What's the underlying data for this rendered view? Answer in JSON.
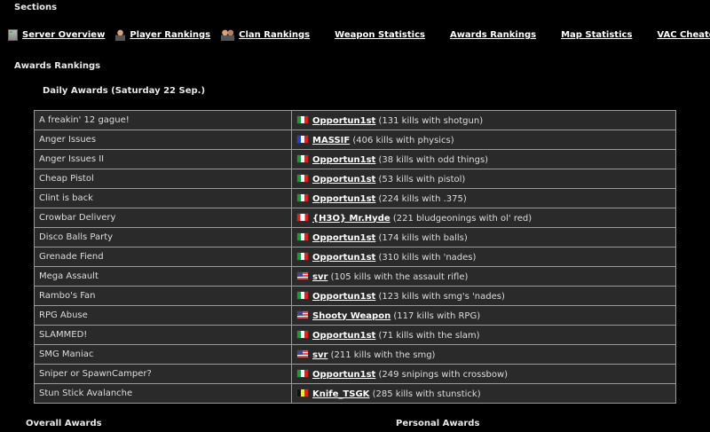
{
  "sections_title": "Sections",
  "nav": [
    {
      "label": "Server Overview",
      "icon": "server-icon"
    },
    {
      "label": "Player Rankings",
      "icon": "player-icon"
    },
    {
      "label": "Clan Rankings",
      "icon": "clan-icon"
    },
    {
      "label": "Weapon Statistics"
    },
    {
      "label": "Awards Rankings"
    },
    {
      "label": "Map Statistics"
    },
    {
      "label": "VAC Cheater List"
    }
  ],
  "page_title": "Awards Rankings",
  "daily_title": "Daily Awards (Saturday 22 Sep.)",
  "awards": [
    {
      "award": "A freakin' 12 gague!",
      "flag": "it",
      "player": "Opportun1st",
      "detail": "(131 kills with shotgun)"
    },
    {
      "award": "Anger Issues",
      "flag": "fr",
      "player": "MASSIF",
      "detail": "(406 kills with physics)"
    },
    {
      "award": "Anger Issues II",
      "flag": "it",
      "player": "Opportun1st",
      "detail": "(38 kills with odd things)"
    },
    {
      "award": "Cheap Pistol",
      "flag": "it",
      "player": "Opportun1st",
      "detail": "(53 kills with pistol)"
    },
    {
      "award": "Clint is back",
      "flag": "it",
      "player": "Opportun1st",
      "detail": "(224 kills with .375)"
    },
    {
      "award": "Crowbar Delivery",
      "flag": "ca",
      "player": "{H3O} Mr.Hyde",
      "detail": "(221 bludgeonings with ol' red)"
    },
    {
      "award": "Disco Balls Party",
      "flag": "it",
      "player": "Opportun1st",
      "detail": "(174 kills with balls)"
    },
    {
      "award": "Grenade Fiend",
      "flag": "it",
      "player": "Opportun1st",
      "detail": "(310 kills with 'nades)"
    },
    {
      "award": "Mega Assault",
      "flag": "us",
      "player": "svr",
      "detail": "(105 kills with the assault rifle)"
    },
    {
      "award": "Rambo's Fan",
      "flag": "it",
      "player": "Opportun1st",
      "detail": "(123 kills with smg's 'nades)"
    },
    {
      "award": "RPG Abuse",
      "flag": "us",
      "player": "Shooty Weapon",
      "detail": "(117 kills with RPG)"
    },
    {
      "award": "SLAMMED!",
      "flag": "it",
      "player": "Opportun1st",
      "detail": "(71 kills with the slam)"
    },
    {
      "award": "SMG Maniac",
      "flag": "us",
      "player": "svr",
      "detail": "(211 kills with the smg)"
    },
    {
      "award": "Sniper or SpawnCamper?",
      "flag": "it",
      "player": "Opportun1st",
      "detail": "(249 snipings with crossbow)"
    },
    {
      "award": "Stun Stick Avalanche",
      "flag": "be",
      "player": "Knife_TSGK",
      "detail": "(285 kills with stunstick)"
    }
  ],
  "overall_title": "Overall Awards",
  "personal_title": "Personal Awards"
}
